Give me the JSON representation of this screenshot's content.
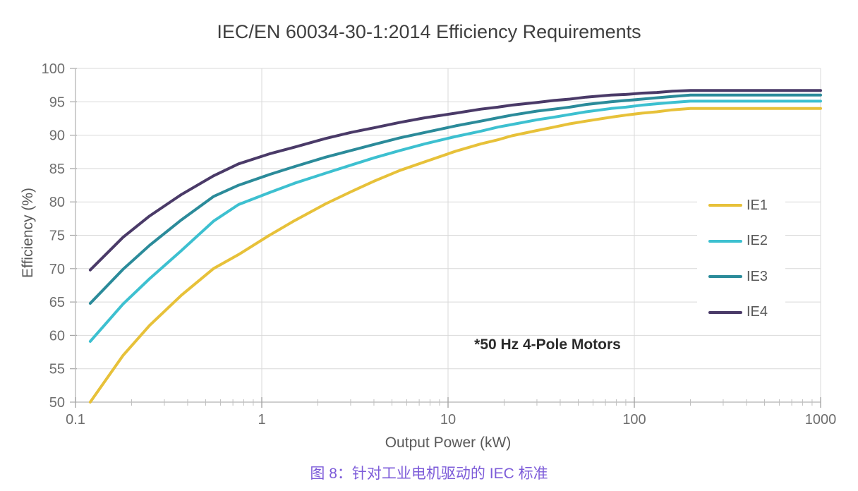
{
  "caption": {
    "text": "图 8：针对工业电机驱动的 IEC 标准",
    "color": "#7d5cd9"
  },
  "chart_data": {
    "type": "line",
    "title": "IEC/EN 60034-30-1:2014 Efficiency Requirements",
    "xlabel": "Output Power (kW)",
    "ylabel": "Efficiency (%)",
    "annotation": "*50 Hz 4-Pole Motors",
    "x_scale": "log",
    "xlim": [
      0.1,
      1000
    ],
    "ylim": [
      50,
      100
    ],
    "xticks": [
      0.1,
      1,
      10,
      100,
      1000
    ],
    "xtick_labels": [
      "0.1",
      "1",
      "10",
      "100",
      "1000"
    ],
    "yticks": [
      50,
      55,
      60,
      65,
      70,
      75,
      80,
      85,
      90,
      95,
      100
    ],
    "grid": true,
    "legend_position": "inside-right",
    "colors": {
      "grid": "#d9d9d9",
      "axis": "#bfbfbf",
      "tick": "#a6a6a6",
      "tick_label": "#6e6e6e",
      "title": "#3f3f3f"
    },
    "x": [
      0.12,
      0.18,
      0.25,
      0.37,
      0.55,
      0.75,
      1.1,
      1.5,
      2.2,
      3,
      4,
      5.5,
      7.5,
      11,
      15,
      18.5,
      22,
      30,
      37,
      45,
      55,
      75,
      90,
      110,
      132,
      160,
      200,
      1000
    ],
    "series": [
      {
        "name": "IE1",
        "color": "#e7c139",
        "values": [
          50.0,
          57.0,
          61.5,
          66.0,
          70.0,
          72.1,
          75.0,
          77.2,
          79.7,
          81.5,
          83.1,
          84.7,
          86.0,
          87.6,
          88.7,
          89.3,
          89.9,
          90.7,
          91.2,
          91.7,
          92.1,
          92.7,
          93.0,
          93.3,
          93.5,
          93.8,
          94.0,
          94.0
        ]
      },
      {
        "name": "IE2",
        "color": "#3dc0d0",
        "values": [
          59.1,
          64.7,
          68.5,
          72.7,
          77.1,
          79.6,
          81.4,
          82.8,
          84.3,
          85.5,
          86.6,
          87.7,
          88.7,
          89.8,
          90.6,
          91.2,
          91.6,
          92.3,
          92.7,
          93.1,
          93.5,
          94.0,
          94.2,
          94.5,
          94.7,
          94.9,
          95.1,
          95.1
        ]
      },
      {
        "name": "IE3",
        "color": "#2b8b9a",
        "values": [
          64.8,
          69.9,
          73.5,
          77.3,
          80.8,
          82.5,
          84.1,
          85.3,
          86.7,
          87.7,
          88.6,
          89.6,
          90.4,
          91.4,
          92.1,
          92.6,
          93.0,
          93.6,
          93.9,
          94.2,
          94.6,
          95.0,
          95.2,
          95.4,
          95.6,
          95.8,
          96.0,
          96.0
        ]
      },
      {
        "name": "IE4",
        "color": "#4a3a68",
        "values": [
          69.8,
          74.7,
          77.9,
          81.1,
          83.9,
          85.7,
          87.2,
          88.2,
          89.5,
          90.4,
          91.1,
          91.9,
          92.6,
          93.3,
          93.9,
          94.2,
          94.5,
          94.9,
          95.2,
          95.4,
          95.7,
          96.0,
          96.1,
          96.3,
          96.4,
          96.6,
          96.7,
          96.7
        ]
      }
    ]
  }
}
